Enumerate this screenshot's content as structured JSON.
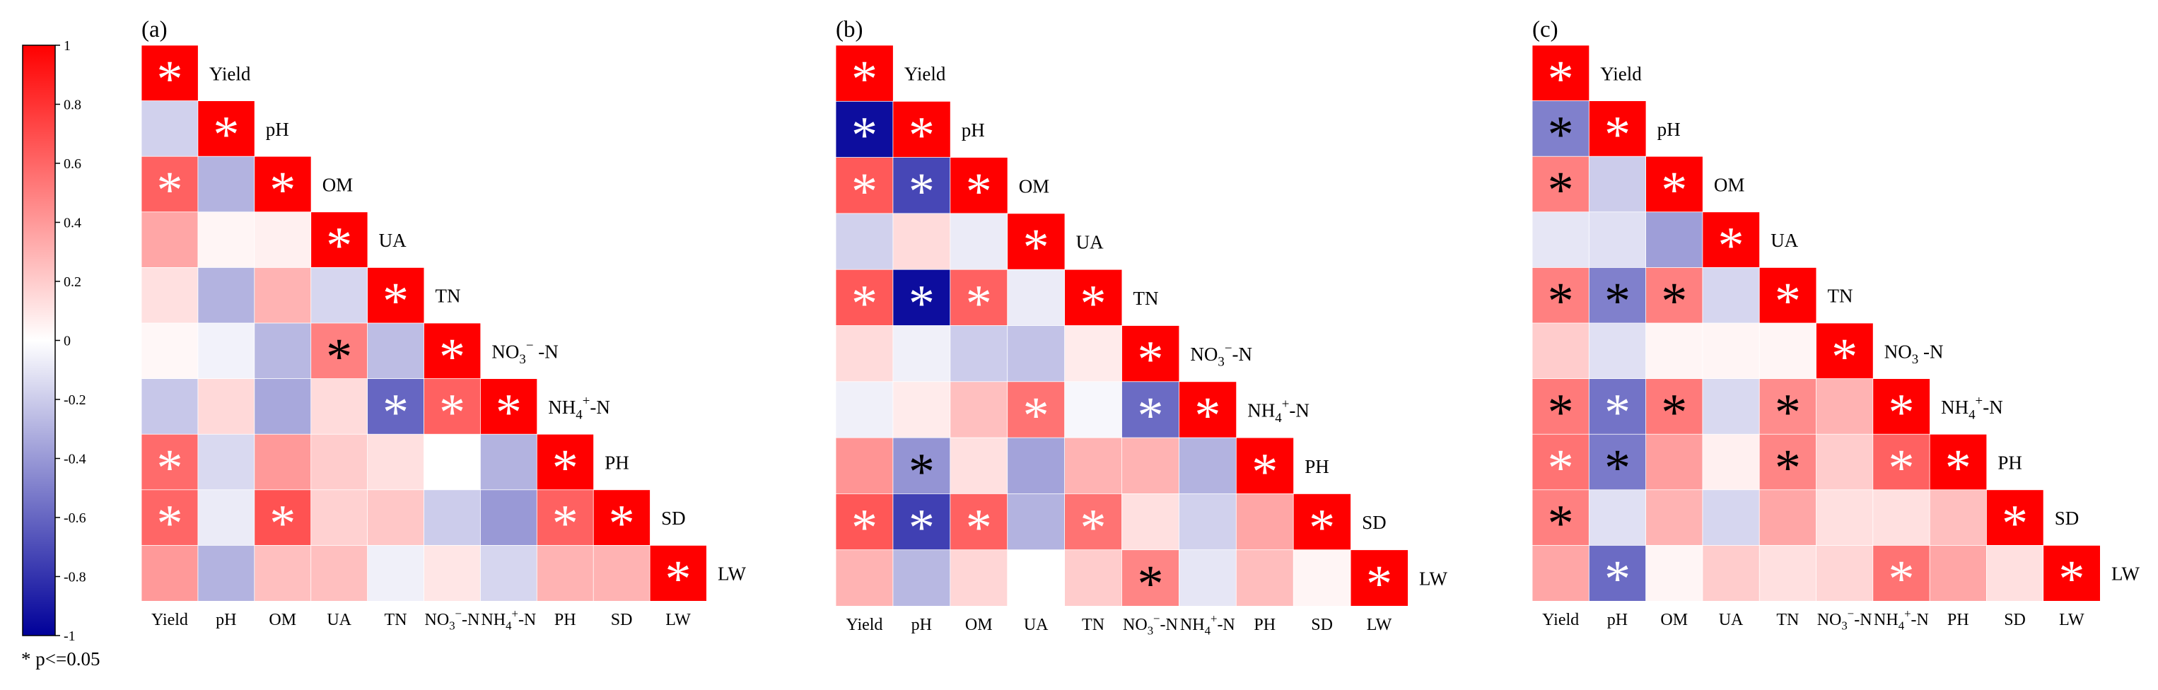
{
  "chart_data": {
    "type": "heatmap",
    "variables": [
      "Yield",
      "pH",
      "OM",
      "UA",
      "TN",
      "NO3-N",
      "NH4+-N",
      "PH",
      "SD",
      "LW"
    ],
    "tick_labels": [
      {
        "base": "Yield"
      },
      {
        "base": "pH"
      },
      {
        "base": "OM"
      },
      {
        "base": "UA"
      },
      {
        "base": "TN"
      },
      {
        "base": "NO",
        "sub": "3",
        "sup": "−",
        "tail": "-N"
      },
      {
        "base": "NH",
        "sub": "4",
        "sup": "+",
        "tail": "-N"
      },
      {
        "base": "PH"
      },
      {
        "base": "SD"
      },
      {
        "base": "LW"
      }
    ],
    "colorbar": {
      "range": [
        -1,
        1
      ],
      "ticks": [
        "1",
        "0.8",
        "0.6",
        "0.4",
        "0.2",
        "0",
        "-0.2",
        "-0.4",
        "-0.6",
        "-0.8",
        "-1"
      ],
      "colors": {
        "low": "#000099",
        "mid": "#ffffff",
        "high": "#ff0000"
      }
    },
    "significance_note": "* p<=0.05",
    "panels": [
      {
        "label": "(a)",
        "diag_labels": [
          {
            "base": "Yield"
          },
          {
            "base": "pH"
          },
          {
            "base": "OM"
          },
          {
            "base": "UA"
          },
          {
            "base": "TN"
          },
          {
            "base": "NO",
            "sub": "3",
            "sup": "−",
            "tail": " -N"
          },
          {
            "base": "NH",
            "sub": "4",
            "sup": "+",
            "tail": "-N"
          },
          {
            "base": "PH"
          },
          {
            "base": "SD"
          },
          {
            "base": "LW"
          }
        ],
        "matrix": [
          [
            1
          ],
          [
            -0.18,
            1
          ],
          [
            0.62,
            -0.3,
            1
          ],
          [
            0.35,
            0.04,
            0.06,
            1
          ],
          [
            0.12,
            -0.3,
            0.3,
            -0.16,
            1
          ],
          [
            0.03,
            -0.05,
            -0.28,
            0.5,
            -0.26,
            1
          ],
          [
            -0.22,
            0.15,
            -0.34,
            0.14,
            -0.6,
            0.62,
            1
          ],
          [
            0.58,
            -0.15,
            0.4,
            0.2,
            0.12,
            0.0,
            -0.3,
            1
          ],
          [
            0.6,
            -0.08,
            0.68,
            0.18,
            0.22,
            -0.2,
            -0.4,
            0.62,
            1
          ],
          [
            0.4,
            -0.3,
            0.25,
            0.25,
            -0.06,
            0.1,
            -0.16,
            0.3,
            0.3,
            1
          ]
        ],
        "stars": [
          [
            1
          ],
          [
            0,
            1
          ],
          [
            1,
            0,
            1
          ],
          [
            0,
            0,
            0,
            1
          ],
          [
            0,
            0,
            0,
            0,
            1
          ],
          [
            0,
            0,
            0,
            1,
            0,
            1
          ],
          [
            0,
            0,
            0,
            0,
            1,
            1,
            1
          ],
          [
            1,
            0,
            0,
            0,
            0,
            0,
            0,
            1
          ],
          [
            1,
            0,
            1,
            0,
            0,
            0,
            0,
            1,
            1
          ],
          [
            0,
            0,
            0,
            0,
            0,
            0,
            0,
            0,
            0,
            1
          ]
        ]
      },
      {
        "label": "(b)",
        "diag_labels": [
          {
            "base": "Yield"
          },
          {
            "base": "pH"
          },
          {
            "base": "OM"
          },
          {
            "base": "UA"
          },
          {
            "base": "TN"
          },
          {
            "base": "NO",
            "sub": "3",
            "sup": "−",
            "tail": "-N"
          },
          {
            "base": "NH",
            "sub": "4",
            "sup": "+",
            "tail": "-N"
          },
          {
            "base": "PH"
          },
          {
            "base": "SD"
          },
          {
            "base": "LW"
          }
        ],
        "matrix": [
          [
            1
          ],
          [
            -0.95,
            1
          ],
          [
            0.65,
            -0.72,
            1
          ],
          [
            -0.18,
            0.14,
            -0.08,
            1
          ],
          [
            0.65,
            -0.95,
            0.62,
            -0.08,
            1
          ],
          [
            0.14,
            -0.06,
            -0.2,
            -0.24,
            0.08,
            1
          ],
          [
            -0.06,
            0.08,
            0.25,
            0.55,
            -0.03,
            -0.58,
            1
          ],
          [
            0.42,
            -0.42,
            0.12,
            -0.36,
            0.3,
            0.3,
            -0.3,
            1
          ],
          [
            0.66,
            -0.75,
            0.62,
            -0.3,
            0.55,
            0.12,
            -0.18,
            0.35,
            1
          ],
          [
            0.3,
            -0.28,
            0.16,
            0.0,
            0.2,
            0.48,
            -0.1,
            0.26,
            0.04,
            1
          ]
        ],
        "stars": [
          [
            1
          ],
          [
            1,
            1
          ],
          [
            1,
            1,
            1
          ],
          [
            0,
            0,
            0,
            1
          ],
          [
            1,
            1,
            1,
            0,
            1
          ],
          [
            0,
            0,
            0,
            0,
            0,
            1
          ],
          [
            0,
            0,
            0,
            1,
            0,
            1,
            1
          ],
          [
            0,
            1,
            0,
            0,
            0,
            0,
            0,
            1
          ],
          [
            1,
            1,
            1,
            0,
            1,
            0,
            0,
            0,
            1
          ],
          [
            0,
            0,
            0,
            0,
            0,
            1,
            0,
            0,
            0,
            1
          ]
        ]
      },
      {
        "label": "(c)",
        "diag_labels": [
          {
            "base": "Yield"
          },
          {
            "base": "pH"
          },
          {
            "base": "OM"
          },
          {
            "base": "UA"
          },
          {
            "base": "TN"
          },
          {
            "base": "NO",
            "sub": "3",
            "tail": " -N"
          },
          {
            "base": "NH",
            "sub": "4",
            "sup": "+",
            "tail": "-N"
          },
          {
            "base": "PH"
          },
          {
            "base": "SD"
          },
          {
            "base": "LW"
          }
        ],
        "matrix": [
          [
            1
          ],
          [
            -0.5,
            1
          ],
          [
            0.5,
            -0.2,
            1
          ],
          [
            -0.1,
            -0.12,
            -0.38,
            1
          ],
          [
            0.5,
            -0.5,
            0.5,
            -0.16,
            1
          ],
          [
            0.2,
            -0.12,
            0.04,
            0.04,
            0.04,
            1
          ],
          [
            0.52,
            -0.55,
            0.52,
            -0.15,
            0.45,
            0.3,
            1
          ],
          [
            0.55,
            -0.52,
            0.38,
            0.06,
            0.48,
            0.2,
            0.62,
            1
          ],
          [
            0.5,
            -0.12,
            0.3,
            -0.16,
            0.35,
            0.12,
            0.12,
            0.25,
            1
          ],
          [
            0.35,
            -0.58,
            0.04,
            0.2,
            0.12,
            0.16,
            0.55,
            0.35,
            0.12,
            1
          ]
        ],
        "stars": [
          [
            1
          ],
          [
            1,
            1
          ],
          [
            1,
            0,
            1
          ],
          [
            0,
            0,
            0,
            1
          ],
          [
            1,
            1,
            1,
            0,
            1
          ],
          [
            0,
            0,
            0,
            0,
            0,
            1
          ],
          [
            1,
            1,
            1,
            0,
            1,
            0,
            1
          ],
          [
            1,
            1,
            0,
            0,
            1,
            0,
            1,
            1
          ],
          [
            1,
            0,
            0,
            0,
            0,
            0,
            0,
            0,
            1
          ],
          [
            0,
            1,
            0,
            0,
            0,
            0,
            1,
            0,
            0,
            1
          ]
        ]
      }
    ]
  }
}
